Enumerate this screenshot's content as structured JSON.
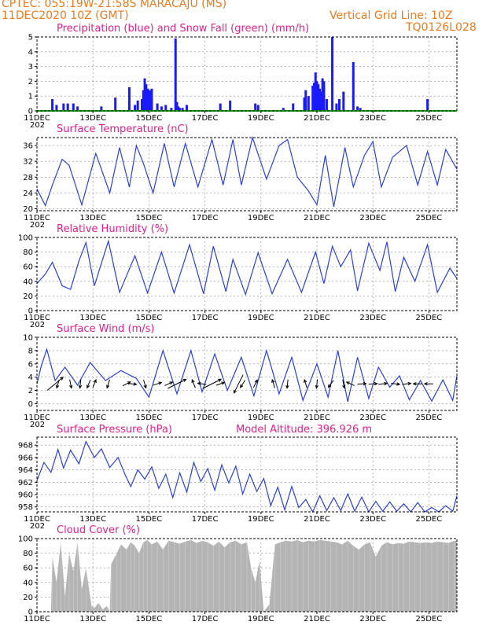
{
  "header": {
    "line1": "CPTEC:   055:19W-21:58S   MARACAJU (MS)",
    "line2": "11DEC2020 10Z (GMT)",
    "grid_note": "Vertical Grid Line: 10Z",
    "code": "TQ0126L028"
  },
  "colors": {
    "header": "#f07a1a",
    "title": "#e0208a",
    "precip": "#1a1aff",
    "snow": "#00aa00",
    "line": "#2a3fe0",
    "cloud": "#b4b4b4",
    "grid": "#888888"
  },
  "x_axis": {
    "start_label": "11DEC",
    "ticks": [
      "11DEC",
      "13DEC",
      "15DEC",
      "17DEC",
      "19DEC",
      "21DEC",
      "23DEC",
      "25DEC"
    ],
    "year_fragment": "202"
  },
  "chart_data": [
    {
      "id": "precipitation",
      "type": "bar",
      "title": "Precipitation (blue) and Snow Fall (green) (mm/h)",
      "ylim": [
        0,
        5
      ],
      "yticks": [
        0,
        1,
        2,
        3,
        4,
        5
      ],
      "series": [
        {
          "name": "Precipitation",
          "x": [
            0.55,
            0.7,
            0.95,
            1.1,
            1.3,
            1.45,
            2.3,
            2.8,
            3.3,
            3.5,
            3.6,
            3.75,
            3.8,
            3.85,
            3.9,
            3.95,
            4.0,
            4.05,
            4.1,
            4.3,
            4.45,
            4.6,
            4.8,
            4.95,
            5.0,
            5.05,
            5.1,
            5.2,
            5.35,
            6.55,
            6.9,
            7.8,
            7.9,
            8.8,
            9.15,
            9.55,
            9.6,
            9.7,
            9.85,
            9.9,
            9.95,
            10.0,
            10.05,
            10.1,
            10.15,
            10.2,
            10.25,
            10.35,
            10.55,
            10.7,
            10.8,
            10.95,
            11.3,
            11.45,
            11.55,
            13.95
          ],
          "values": [
            0.8,
            0.4,
            0.5,
            0.5,
            0.5,
            0.3,
            0.3,
            0.9,
            1.6,
            0.4,
            0.7,
            0.8,
            1.4,
            2.2,
            1.8,
            1.5,
            1.4,
            1.4,
            1.5,
            0.5,
            0.3,
            0.4,
            0.2,
            4.9,
            0.6,
            0.3,
            0.2,
            0.2,
            0.4,
            0.5,
            0.7,
            0.5,
            0.4,
            0.2,
            0.5,
            0.9,
            1.4,
            1.0,
            1.7,
            1.9,
            2.6,
            2.0,
            1.8,
            1.5,
            1.3,
            2.2,
            2.0,
            0.8,
            5.0,
            0.5,
            0.8,
            1.3,
            3.3,
            0.3,
            0.2,
            0.8
          ]
        },
        {
          "name": "Snow Fall",
          "x": [
            0,
            15
          ],
          "values": [
            0,
            0
          ]
        }
      ]
    },
    {
      "id": "temperature",
      "type": "line",
      "title": "Surface Temperature (nC)",
      "ylim": [
        19.5,
        38
      ],
      "yticks": [
        20,
        24,
        28,
        32,
        36
      ],
      "x": [
        0,
        0.3,
        0.55,
        0.9,
        1.15,
        1.6,
        2.1,
        2.6,
        2.95,
        3.3,
        3.55,
        3.8,
        4.15,
        4.55,
        4.9,
        5.3,
        5.75,
        6.25,
        6.65,
        7.0,
        7.3,
        7.7,
        8.2,
        8.65,
        8.95,
        9.3,
        9.7,
        10.0,
        10.3,
        10.6,
        11.0,
        11.3,
        11.7,
        12.0,
        12.3,
        12.7,
        13.2,
        13.6,
        13.95,
        14.3,
        14.6,
        15.0
      ],
      "values": [
        25,
        20.8,
        26,
        32.5,
        31,
        21,
        34,
        24,
        35.5,
        25.5,
        36,
        31.5,
        24,
        36.5,
        25.5,
        36.5,
        25.5,
        37.5,
        26,
        37.5,
        26,
        38,
        27.5,
        36,
        37.5,
        28,
        24.5,
        21,
        33.5,
        20.5,
        35.5,
        25.5,
        33.5,
        37,
        25.5,
        33,
        36,
        26,
        34.5,
        26,
        35,
        30
      ]
    },
    {
      "id": "humidity",
      "type": "line",
      "title": "Relative Humidity (%)",
      "ylim": [
        0,
        100
      ],
      "yticks": [
        0,
        20,
        40,
        60,
        80,
        100
      ],
      "x": [
        0,
        0.3,
        0.55,
        0.9,
        1.2,
        1.5,
        1.75,
        2.05,
        2.55,
        2.95,
        3.5,
        3.95,
        4.45,
        4.9,
        5.45,
        5.95,
        6.3,
        6.75,
        7.0,
        7.45,
        7.9,
        8.4,
        8.95,
        9.45,
        9.95,
        10.25,
        10.55,
        10.85,
        11.2,
        11.45,
        11.85,
        12.25,
        12.5,
        12.8,
        13.1,
        13.5,
        13.95,
        14.3,
        14.75,
        15.0
      ],
      "values": [
        37,
        50,
        66,
        34,
        29,
        68,
        93,
        34,
        95,
        25,
        75,
        24,
        80,
        24,
        90,
        23,
        88,
        26,
        70,
        22,
        79,
        23,
        70,
        25,
        80,
        37,
        88,
        60,
        83,
        27,
        92,
        55,
        94,
        26,
        73,
        40,
        90,
        25,
        58,
        44
      ]
    },
    {
      "id": "wind",
      "type": "line",
      "title": "Surface Wind (m/s)",
      "ylim": [
        -1,
        10
      ],
      "yticks": [
        0,
        2,
        4,
        6,
        8,
        10
      ],
      "x": [
        0,
        0.15,
        0.35,
        0.65,
        1.0,
        1.45,
        1.9,
        2.45,
        3.0,
        3.55,
        4.0,
        4.5,
        5.0,
        5.5,
        5.9,
        6.35,
        6.8,
        7.3,
        7.75,
        8.2,
        8.65,
        9.1,
        9.5,
        10.0,
        10.4,
        10.75,
        11.1,
        11.45,
        11.85,
        12.2,
        12.6,
        12.95,
        13.3,
        13.7,
        14.1,
        14.5,
        14.85,
        15.0
      ],
      "values": [
        3,
        5.6,
        8.2,
        3.5,
        5.5,
        2.8,
        6.2,
        3.5,
        5.0,
        3.8,
        1.0,
        8.0,
        1.5,
        8.0,
        1.8,
        7.5,
        2.0,
        7.0,
        1.2,
        8.0,
        1.5,
        7.0,
        0.5,
        6.0,
        1.0,
        8.0,
        0.3,
        7.0,
        0.8,
        5.5,
        2.5,
        4.2,
        0.6,
        3.5,
        0.4,
        3.6,
        0.5,
        4.2
      ],
      "arrows": [
        {
          "x": 0.75,
          "u": -0.3,
          "v": -1
        },
        {
          "x": 1.2,
          "u": 0.2,
          "v": -1
        },
        {
          "x": 1.55,
          "u": -0.1,
          "v": -1
        },
        {
          "x": 1.85,
          "u": -0.4,
          "v": -1
        },
        {
          "x": 2.05,
          "u": 0.4,
          "v": 1
        },
        {
          "x": 2.55,
          "u": -0.3,
          "v": -1
        },
        {
          "x": 3.2,
          "u": 1,
          "v": 0.5
        },
        {
          "x": 3.4,
          "u": 1,
          "v": -0.1
        },
        {
          "x": 3.85,
          "u": 0.3,
          "v": -1
        },
        {
          "x": 4.3,
          "u": 0.6,
          "v": 0.2
        },
        {
          "x": 4.7,
          "u": 1,
          "v": 0.45
        },
        {
          "x": 5.6,
          "u": -0.4,
          "v": 1
        },
        {
          "x": 5.9,
          "u": -1,
          "v": 0.15
        },
        {
          "x": 6.55,
          "u": 1,
          "v": 0.35
        },
        {
          "x": 7.35,
          "u": -0.4,
          "v": -0.6
        },
        {
          "x": 7.8,
          "u": 0.5,
          "v": 1
        },
        {
          "x": 8.45,
          "u": -0.3,
          "v": 1
        },
        {
          "x": 8.95,
          "u": -0.1,
          "v": -1
        },
        {
          "x": 9.6,
          "u": -0.3,
          "v": 1
        },
        {
          "x": 10.0,
          "u": -0.1,
          "v": -1
        },
        {
          "x": 10.5,
          "u": -0.6,
          "v": -0.8
        },
        {
          "x": 10.95,
          "u": 0.2,
          "v": -1
        },
        {
          "x": 11.2,
          "u": -0.9,
          "v": 0.4
        },
        {
          "x": 11.6,
          "u": 1,
          "v": 0.05
        },
        {
          "x": 12.0,
          "u": 1,
          "v": 0.05
        },
        {
          "x": 12.35,
          "u": 1,
          "v": 0.1
        },
        {
          "x": 12.8,
          "u": 1,
          "v": -0.1
        },
        {
          "x": 13.2,
          "u": 1,
          "v": 0.1
        },
        {
          "x": 13.6,
          "u": -1,
          "v": 0
        },
        {
          "x": 14.0,
          "u": -1,
          "v": 0
        }
      ],
      "wind_vectors": [
        {
          "x": 0.65,
          "u": 1.2,
          "v": 1
        },
        {
          "x": 5.0,
          "u": 1,
          "v": 0.5
        },
        {
          "x": 6.25,
          "u": 1,
          "v": 0.5
        },
        {
          "x": 7.2,
          "u": -0.5,
          "v": -1
        }
      ]
    },
    {
      "id": "pressure",
      "type": "line",
      "title": "Surface Pressure (hPa)",
      "subtitle": "Model Altitude: 396.926 m",
      "ylim": [
        957.2,
        969.3
      ],
      "yticks": [
        958,
        960,
        962,
        964,
        966,
        968
      ],
      "x": [
        0,
        0.25,
        0.5,
        0.75,
        0.95,
        1.2,
        1.5,
        1.75,
        2.05,
        2.3,
        2.6,
        2.9,
        3.15,
        3.35,
        3.6,
        3.85,
        4.1,
        4.35,
        4.6,
        4.85,
        5.1,
        5.35,
        5.6,
        5.85,
        6.1,
        6.35,
        6.6,
        6.85,
        7.1,
        7.35,
        7.6,
        7.85,
        8.1,
        8.35,
        8.6,
        8.85,
        9.1,
        9.35,
        9.6,
        9.85,
        10.1,
        10.35,
        10.6,
        10.85,
        11.1,
        11.35,
        11.6,
        11.85,
        12.1,
        12.35,
        12.6,
        12.85,
        13.1,
        13.35,
        13.6,
        13.85,
        14.1,
        14.35,
        14.6,
        14.85,
        15.0
      ],
      "values": [
        962.3,
        965.2,
        963.6,
        967.3,
        964.3,
        967.2,
        965.0,
        968.6,
        966.0,
        967.4,
        964.4,
        966.0,
        963.2,
        961.3,
        964.0,
        962.5,
        964.5,
        961.0,
        963.3,
        959.5,
        963.5,
        960.4,
        965.2,
        962.1,
        964.2,
        960.7,
        964.8,
        961.9,
        964.6,
        960.1,
        963.3,
        960.5,
        962.6,
        958.2,
        961.2,
        957.5,
        961.3,
        957.9,
        959.2,
        957.2,
        959.8,
        957.4,
        959.5,
        957.4,
        960.1,
        957.3,
        959.6,
        957.2,
        958.9,
        957.3,
        958.8,
        957.3,
        958.5,
        957.2,
        958.7,
        957.2,
        957.9,
        957.2,
        958.2,
        957.3,
        959.8
      ]
    },
    {
      "id": "cloud",
      "type": "area",
      "title": "Cloud Cover (%)",
      "ylim": [
        0,
        100
      ],
      "yticks": [
        0,
        20,
        40,
        60,
        80,
        100
      ],
      "x": [
        0,
        0.5,
        0.55,
        0.7,
        0.85,
        1.0,
        1.15,
        1.3,
        1.45,
        1.6,
        1.75,
        1.95,
        2.05,
        2.2,
        2.35,
        2.5,
        2.6,
        2.65,
        2.85,
        3.0,
        3.2,
        3.35,
        3.5,
        3.65,
        3.8,
        3.95,
        4.1,
        4.3,
        4.5,
        4.7,
        4.9,
        5.1,
        5.3,
        5.5,
        5.7,
        5.9,
        6.1,
        6.3,
        6.5,
        6.7,
        6.9,
        7.1,
        7.3,
        7.5,
        7.65,
        7.8,
        7.95,
        8.1,
        8.3,
        8.5,
        8.7,
        8.9,
        9.1,
        9.3,
        9.5,
        9.7,
        9.9,
        10.1,
        10.3,
        10.5,
        10.7,
        10.9,
        11.1,
        11.3,
        11.5,
        11.7,
        11.9,
        12.1,
        12.3,
        12.5,
        12.7,
        12.9,
        13.1,
        13.3,
        13.5,
        13.7,
        13.9,
        14.1,
        14.3,
        14.5,
        14.7,
        14.9,
        15.0
      ],
      "values": [
        0,
        0,
        75,
        40,
        95,
        20,
        80,
        55,
        95,
        30,
        60,
        8,
        5,
        12,
        3,
        8,
        0,
        65,
        80,
        92,
        85,
        95,
        90,
        80,
        95,
        98,
        92,
        96,
        85,
        97,
        95,
        93,
        96,
        98,
        94,
        97,
        95,
        90,
        96,
        88,
        95,
        97,
        92,
        95,
        60,
        40,
        70,
        0,
        10,
        92,
        95,
        97,
        96,
        98,
        95,
        97,
        96,
        98,
        97,
        96,
        95,
        92,
        97,
        90,
        85,
        92,
        95,
        75,
        90,
        95,
        92,
        94,
        93,
        96,
        95,
        94,
        95,
        94,
        96,
        95,
        94,
        97,
        97
      ]
    }
  ]
}
